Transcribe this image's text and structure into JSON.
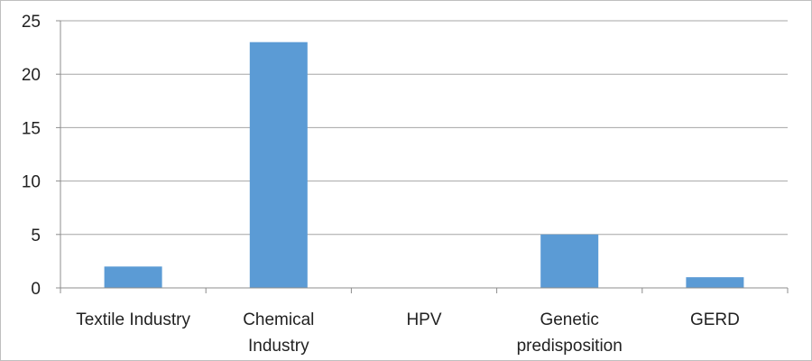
{
  "chart_data": {
    "type": "bar",
    "title": "",
    "xlabel": "",
    "ylabel": "",
    "categories": [
      [
        "Textile Industry"
      ],
      [
        "Chemical",
        "Industry"
      ],
      [
        "HPV"
      ],
      [
        "Genetic",
        "predisposition"
      ],
      [
        "GERD"
      ]
    ],
    "values": [
      2,
      23,
      0,
      5,
      1
    ],
    "ylim": [
      0,
      25
    ],
    "yticks": [
      "0",
      "5",
      "10",
      "15",
      "20",
      "25"
    ],
    "grid": true,
    "legend": "none",
    "colors": {
      "bar": "#5b9bd5",
      "grid": "#a6a6a6",
      "axis": "#8c8c8c"
    }
  }
}
